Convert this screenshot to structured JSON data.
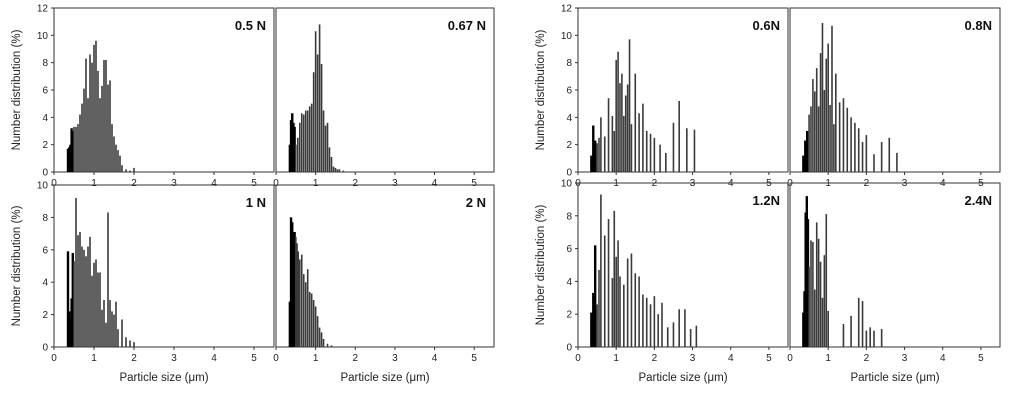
{
  "chart_data": [
    {
      "type": "bar",
      "title": "0.5 N",
      "xlim": [
        0,
        5.5
      ],
      "ylim": [
        0,
        12
      ],
      "xticks": [
        "0",
        "1",
        "2",
        "3",
        "4",
        "5"
      ],
      "yticks": [
        "0",
        "2",
        "4",
        "6",
        "8",
        "10",
        "12"
      ],
      "xlabel": "",
      "ylabel": "Number distribution (%)",
      "x": [
        0.35,
        0.38,
        0.41,
        0.44,
        0.47,
        0.5,
        0.55,
        0.6,
        0.65,
        0.7,
        0.75,
        0.8,
        0.85,
        0.9,
        0.95,
        1.0,
        1.05,
        1.1,
        1.15,
        1.2,
        1.25,
        1.3,
        1.35,
        1.4,
        1.45,
        1.5,
        1.55,
        1.6,
        1.65,
        1.7,
        1.8,
        1.9,
        2.0
      ],
      "y": [
        1.7,
        1.8,
        2.0,
        3.2,
        3.0,
        3.3,
        3.3,
        3.5,
        4.2,
        5.0,
        6.1,
        8.3,
        5.4,
        8.6,
        8.0,
        9.3,
        9.6,
        7.4,
        5.4,
        6.3,
        8.2,
        8.2,
        6.4,
        6.7,
        3.5,
        2.6,
        2.0,
        1.6,
        1.2,
        0.5,
        0.2,
        0.1,
        0.3
      ]
    },
    {
      "type": "bar",
      "title": "0.67 N",
      "xlim": [
        0,
        5.5
      ],
      "ylim": [
        0,
        12
      ],
      "xticks": [
        "0",
        "1",
        "2",
        "3",
        "4",
        "5"
      ],
      "yticks": [],
      "xlabel": "",
      "ylabel": "",
      "x": [
        0.35,
        0.38,
        0.41,
        0.44,
        0.47,
        0.5,
        0.55,
        0.6,
        0.65,
        0.7,
        0.75,
        0.8,
        0.85,
        0.9,
        0.95,
        1.0,
        1.05,
        1.1,
        1.15,
        1.2,
        1.25,
        1.3,
        1.35,
        1.4,
        1.45,
        1.5,
        1.55,
        1.6,
        1.7
      ],
      "y": [
        2.0,
        3.8,
        4.3,
        3.6,
        3.3,
        2.0,
        2.5,
        3.6,
        4.3,
        4.2,
        4.5,
        4.5,
        4.8,
        5.0,
        7.3,
        10.3,
        8.6,
        10.8,
        7.9,
        4.5,
        3.4,
        3.6,
        1.8,
        1.1,
        0.4,
        0.3,
        0.2,
        0.2,
        0.1
      ]
    },
    {
      "type": "bar",
      "title": "0.6N",
      "xlim": [
        0,
        5.5
      ],
      "ylim": [
        0,
        12
      ],
      "xticks": [
        "0",
        "1",
        "2",
        "3",
        "4",
        "5"
      ],
      "yticks": [
        "0",
        "2",
        "4",
        "6",
        "8",
        "10",
        "12"
      ],
      "xlabel": "",
      "ylabel": "Number distribution (%)",
      "x": [
        0.35,
        0.4,
        0.45,
        0.5,
        0.55,
        0.6,
        0.7,
        0.8,
        0.9,
        0.95,
        1.0,
        1.05,
        1.1,
        1.15,
        1.2,
        1.25,
        1.3,
        1.35,
        1.4,
        1.5,
        1.6,
        1.7,
        1.8,
        1.9,
        2.0,
        2.15,
        2.3,
        2.5,
        2.65,
        2.85,
        3.05
      ],
      "y": [
        1.2,
        3.4,
        2.3,
        2.1,
        2.5,
        4.0,
        2.6,
        5.4,
        4.1,
        3.0,
        8.2,
        8.8,
        6.5,
        7.2,
        4.1,
        5.6,
        6.4,
        9.7,
        3.5,
        7.2,
        4.3,
        5.0,
        3.0,
        2.8,
        2.5,
        2.0,
        1.4,
        3.6,
        5.2,
        3.2,
        3.1
      ]
    },
    {
      "type": "bar",
      "title": "0.8N",
      "xlim": [
        0,
        5.5
      ],
      "ylim": [
        0,
        12
      ],
      "xticks": [
        "0",
        "1",
        "2",
        "3",
        "4",
        "5"
      ],
      "yticks": [],
      "xlabel": "",
      "ylabel": "",
      "x": [
        0.35,
        0.4,
        0.45,
        0.5,
        0.55,
        0.6,
        0.65,
        0.7,
        0.75,
        0.8,
        0.85,
        0.9,
        0.95,
        1.0,
        1.05,
        1.1,
        1.15,
        1.2,
        1.3,
        1.4,
        1.5,
        1.6,
        1.7,
        1.8,
        1.9,
        2.0,
        2.2,
        2.4,
        2.6,
        2.8
      ],
      "y": [
        1.2,
        2.3,
        3.0,
        4.2,
        4.8,
        6.8,
        5.9,
        7.6,
        4.8,
        8.7,
        10.9,
        6.0,
        8.3,
        9.4,
        4.9,
        10.7,
        3.5,
        7.2,
        5.1,
        5.4,
        4.7,
        4.0,
        3.6,
        3.2,
        2.2,
        2.7,
        1.3,
        2.2,
        2.5,
        1.4
      ]
    },
    {
      "type": "bar",
      "title": "1 N",
      "xlim": [
        0,
        5.5
      ],
      "ylim": [
        0,
        10
      ],
      "xticks": [
        "0",
        "1",
        "2",
        "3",
        "4",
        "5"
      ],
      "yticks": [
        "0",
        "2",
        "4",
        "6",
        "8",
        "10"
      ],
      "xlabel": "Particle size (μm)",
      "ylabel": "Number distribution (%)",
      "x": [
        0.35,
        0.38,
        0.41,
        0.44,
        0.47,
        0.5,
        0.55,
        0.6,
        0.65,
        0.7,
        0.75,
        0.8,
        0.85,
        0.9,
        0.95,
        1.0,
        1.05,
        1.1,
        1.15,
        1.2,
        1.25,
        1.3,
        1.35,
        1.4,
        1.45,
        1.5,
        1.55,
        1.6,
        1.7,
        1.8,
        1.9,
        2.0
      ],
      "y": [
        5.9,
        2.2,
        1.8,
        3.0,
        5.8,
        5.3,
        9.2,
        6.9,
        7.1,
        6.2,
        6.0,
        5.6,
        6.2,
        6.8,
        4.4,
        5.2,
        5.4,
        4.6,
        4.6,
        2.3,
        2.9,
        1.5,
        8.3,
        2.9,
        2.2,
        2.0,
        2.8,
        1.1,
        1.7,
        0.6,
        0.4,
        0.3
      ]
    },
    {
      "type": "bar",
      "title": "2 N",
      "xlim": [
        0,
        5.5
      ],
      "ylim": [
        0,
        10
      ],
      "xticks": [
        "0",
        "1",
        "2",
        "3",
        "4",
        "5"
      ],
      "yticks": [],
      "xlabel": "Particle size (μm)",
      "ylabel": "",
      "x": [
        0.35,
        0.38,
        0.41,
        0.44,
        0.47,
        0.5,
        0.53,
        0.56,
        0.6,
        0.65,
        0.7,
        0.75,
        0.8,
        0.85,
        0.9,
        0.95,
        1.0,
        1.05,
        1.1,
        1.15,
        1.2,
        1.3,
        1.4
      ],
      "y": [
        2.8,
        8.0,
        7.7,
        6.3,
        7.1,
        6.8,
        6.4,
        5.9,
        5.4,
        5.7,
        4.5,
        4.0,
        4.8,
        3.4,
        3.3,
        2.9,
        2.5,
        1.9,
        1.2,
        0.9,
        0.5,
        0.2,
        0.1
      ]
    },
    {
      "type": "bar",
      "title": "1.2N",
      "xlim": [
        0,
        5.5
      ],
      "ylim": [
        0,
        10
      ],
      "xticks": [
        "0",
        "1",
        "2",
        "3",
        "4",
        "5"
      ],
      "yticks": [
        "0",
        "2",
        "4",
        "6",
        "8",
        "10"
      ],
      "xlabel": "Particle size (μm)",
      "ylabel": "Number distribution (%)",
      "x": [
        0.35,
        0.4,
        0.45,
        0.5,
        0.55,
        0.6,
        0.7,
        0.8,
        0.9,
        0.95,
        1.0,
        1.05,
        1.1,
        1.2,
        1.3,
        1.4,
        1.5,
        1.6,
        1.7,
        1.8,
        1.9,
        2.0,
        2.1,
        2.2,
        2.35,
        2.5,
        2.65,
        2.8,
        2.95,
        3.1
      ],
      "y": [
        2.1,
        3.3,
        6.2,
        2.6,
        4.7,
        9.3,
        6.8,
        7.8,
        4.2,
        8.3,
        5.5,
        6.5,
        4.3,
        3.8,
        5.4,
        5.7,
        4.5,
        4.3,
        3.2,
        3.0,
        2.6,
        3.1,
        2.0,
        2.7,
        1.2,
        1.5,
        2.3,
        2.3,
        1.1,
        1.3
      ]
    },
    {
      "type": "bar",
      "title": "2.4N",
      "xlim": [
        0,
        5.5
      ],
      "ylim": [
        0,
        10
      ],
      "xticks": [
        "0",
        "1",
        "2",
        "3",
        "4",
        "5"
      ],
      "yticks": [],
      "xlabel": "Particle size (μm)",
      "ylabel": "",
      "x": [
        0.35,
        0.38,
        0.41,
        0.44,
        0.47,
        0.5,
        0.55,
        0.6,
        0.65,
        0.7,
        0.75,
        0.8,
        0.85,
        0.9,
        0.95,
        1.0,
        1.4,
        1.6,
        1.8,
        1.9,
        2.0,
        2.1,
        2.2,
        2.4
      ],
      "y": [
        2.1,
        3.4,
        8.2,
        9.2,
        7.8,
        4.9,
        6.5,
        6.4,
        3.5,
        7.6,
        6.6,
        5.2,
        3.0,
        5.6,
        8.1,
        2.2,
        1.4,
        1.9,
        3.0,
        2.8,
        1.0,
        1.2,
        1.0,
        1.1
      ]
    }
  ]
}
